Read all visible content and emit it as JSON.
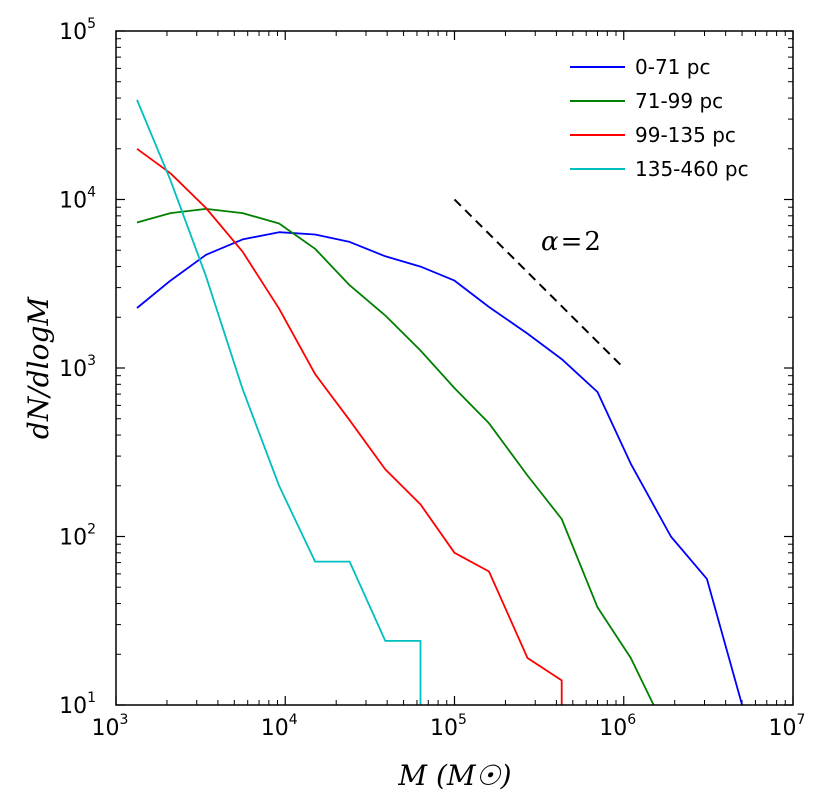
{
  "chart_data": {
    "type": "line",
    "xscale": "log",
    "yscale": "log",
    "xlim": [
      1000,
      10000000
    ],
    "ylim": [
      10,
      100000
    ],
    "xlabel": "M (M☉)",
    "ylabel": "dN/dlogM",
    "x_ticks": [
      {
        "base": "10",
        "exp": "3"
      },
      {
        "base": "10",
        "exp": "4"
      },
      {
        "base": "10",
        "exp": "5"
      },
      {
        "base": "10",
        "exp": "6"
      },
      {
        "base": "10",
        "exp": "7"
      }
    ],
    "y_ticks": [
      {
        "base": "10",
        "exp": "1"
      },
      {
        "base": "10",
        "exp": "2"
      },
      {
        "base": "10",
        "exp": "3"
      },
      {
        "base": "10",
        "exp": "4"
      },
      {
        "base": "10",
        "exp": "5"
      }
    ],
    "legend_position": "top-right",
    "series": [
      {
        "name": "0-71 pc",
        "color": "#0000ff",
        "points": [
          [
            1330,
            2270
          ],
          [
            2100,
            3300
          ],
          [
            3400,
            4700
          ],
          [
            5600,
            5800
          ],
          [
            9200,
            6400
          ],
          [
            15000,
            6200
          ],
          [
            24000,
            5600
          ],
          [
            39000,
            4600
          ],
          [
            63000,
            4000
          ],
          [
            100000,
            3300
          ],
          [
            160000,
            2300
          ],
          [
            270000,
            1600
          ],
          [
            430000,
            1130
          ],
          [
            700000,
            720
          ],
          [
            1100000,
            270
          ],
          [
            1900000,
            100
          ],
          [
            3100000,
            56
          ],
          [
            5000000,
            10
          ]
        ]
      },
      {
        "name": "71-99 pc",
        "color": "#008000",
        "points": [
          [
            1330,
            7300
          ],
          [
            2100,
            8300
          ],
          [
            3400,
            8800
          ],
          [
            5600,
            8300
          ],
          [
            9200,
            7200
          ],
          [
            15000,
            5100
          ],
          [
            24000,
            3100
          ],
          [
            39000,
            2050
          ],
          [
            63000,
            1270
          ],
          [
            100000,
            760
          ],
          [
            160000,
            470
          ],
          [
            270000,
            230
          ],
          [
            430000,
            127
          ],
          [
            700000,
            38
          ],
          [
            1100000,
            19
          ],
          [
            1500000,
            10
          ]
        ]
      },
      {
        "name": "99-135 pc",
        "color": "#ff0000",
        "points": [
          [
            1330,
            20000
          ],
          [
            2100,
            14300
          ],
          [
            3400,
            8900
          ],
          [
            5600,
            4900
          ],
          [
            9200,
            2250
          ],
          [
            15000,
            920
          ],
          [
            24000,
            490
          ],
          [
            39000,
            250
          ],
          [
            63000,
            155
          ],
          [
            100000,
            80
          ],
          [
            160000,
            62
          ],
          [
            270000,
            19
          ],
          [
            430000,
            14
          ],
          [
            430000,
            10
          ]
        ]
      },
      {
        "name": "135-460 pc",
        "color": "#00bfbf",
        "points": [
          [
            1330,
            39000
          ],
          [
            2100,
            13000
          ],
          [
            3400,
            3500
          ],
          [
            5600,
            750
          ],
          [
            9200,
            200
          ],
          [
            15000,
            71
          ],
          [
            24000,
            71
          ],
          [
            39000,
            24
          ],
          [
            63000,
            24
          ],
          [
            63000,
            10
          ]
        ]
      }
    ],
    "reference_line": {
      "label_base": "α",
      "label_eq": "=",
      "label_value": "2",
      "slope_alpha": 2,
      "x": [
        100000,
        1000000
      ],
      "y": [
        10000,
        1000
      ],
      "style": "dashed"
    }
  }
}
